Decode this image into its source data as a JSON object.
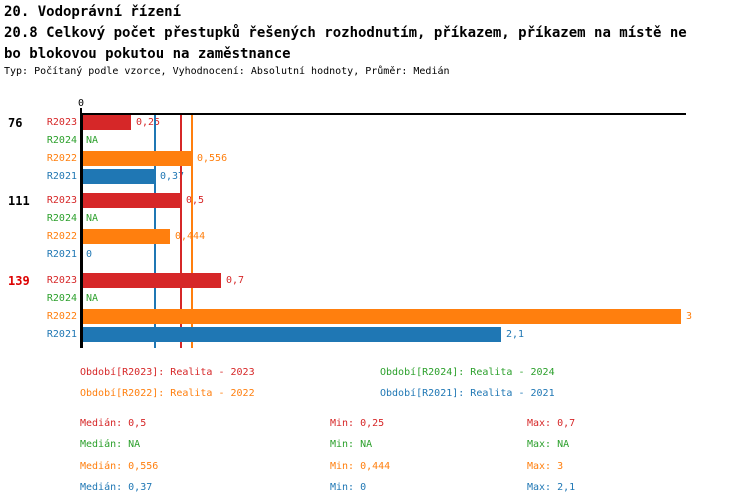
{
  "header": {
    "section_title": "20. Vodoprávní řízení",
    "chart_title_line1": "20.8 Celkový počet přestupků řešených rozhodnutím, příkazem, příkazem na místě ne",
    "chart_title_line2": "bo blokovou pokutou na zaměstnance",
    "meta": "Typ: Počítaný podle vzorce, Vyhodnocení: Absolutní hodnoty, Průměr: Medián"
  },
  "colors": {
    "R2023": "#d62728",
    "R2024": "#2ca02c",
    "R2022": "#ff7f0e",
    "R2021": "#1f77b4",
    "highlight": "#dd0000",
    "axis": "#000000"
  },
  "chart_data": {
    "type": "bar",
    "orientation": "horizontal",
    "x_axis": {
      "tick_labels": [
        "0"
      ],
      "range": [
        0,
        3
      ]
    },
    "series_order": [
      "R2023",
      "R2024",
      "R2022",
      "R2021"
    ],
    "groups": [
      {
        "label": "76",
        "label_color": "black",
        "rows": [
          {
            "series": "R2023",
            "value": 0.25,
            "label": "0,25"
          },
          {
            "series": "R2024",
            "value": null,
            "label": "NA"
          },
          {
            "series": "R2022",
            "value": 0.556,
            "label": "0,556"
          },
          {
            "series": "R2021",
            "value": 0.37,
            "label": "0,37"
          }
        ]
      },
      {
        "label": "111",
        "label_color": "black",
        "rows": [
          {
            "series": "R2023",
            "value": 0.5,
            "label": "0,5"
          },
          {
            "series": "R2024",
            "value": null,
            "label": "NA"
          },
          {
            "series": "R2022",
            "value": 0.444,
            "label": "0,444"
          },
          {
            "series": "R2021",
            "value": 0,
            "label": "0"
          }
        ]
      },
      {
        "label": "139",
        "label_color": "red",
        "rows": [
          {
            "series": "R2023",
            "value": 0.7,
            "label": "0,7"
          },
          {
            "series": "R2024",
            "value": null,
            "label": "NA"
          },
          {
            "series": "R2022",
            "value": 3,
            "label": "3"
          },
          {
            "series": "R2021",
            "value": 2.1,
            "label": "2,1"
          }
        ]
      }
    ],
    "median_lines": [
      {
        "series": "R2021",
        "value": 0.37
      },
      {
        "series": "R2023",
        "value": 0.5
      },
      {
        "series": "R2022",
        "value": 0.556
      }
    ],
    "stats": [
      {
        "series": "R2023",
        "median": 0.5,
        "min": 0.25,
        "max": 0.7
      },
      {
        "series": "R2024",
        "median": null,
        "min": null,
        "max": null
      },
      {
        "series": "R2022",
        "median": 0.556,
        "min": 0.444,
        "max": 3
      },
      {
        "series": "R2021",
        "median": 0.37,
        "min": 0,
        "max": 2.1
      }
    ]
  },
  "legend": {
    "items": [
      {
        "series": "R2023",
        "text": "Období[R2023]: Realita - 2023"
      },
      {
        "series": "R2024",
        "text": "Období[R2024]: Realita - 2024"
      },
      {
        "series": "R2022",
        "text": "Období[R2022]: Realita - 2022"
      },
      {
        "series": "R2021",
        "text": "Období[R2021]: Realita - 2021"
      }
    ]
  },
  "stats_panel": {
    "rows": [
      {
        "series": "R2023",
        "cells": [
          "Medián: 0,5",
          "Min: 0,25",
          "Max: 0,7"
        ]
      },
      {
        "series": "R2024",
        "cells": [
          "Medián: NA",
          "Min: NA",
          "Max: NA"
        ]
      },
      {
        "series": "R2022",
        "cells": [
          "Medián: 0,556",
          "Min: 0,444",
          "Max: 3"
        ]
      },
      {
        "series": "R2021",
        "cells": [
          "Medián: 0,37",
          "Min: 0",
          "Max: 2,1"
        ]
      }
    ]
  }
}
